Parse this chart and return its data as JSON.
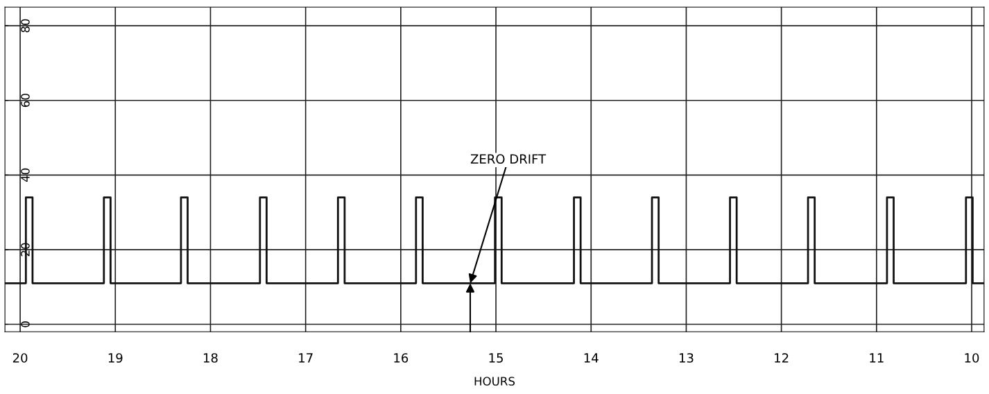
{
  "chart_data": {
    "type": "line",
    "xlabel": "HOURS",
    "x": [
      20.16,
      19.94,
      19.94,
      19.87,
      19.87,
      19.12,
      19.12,
      19.05,
      19.05,
      18.31,
      18.31,
      18.24,
      18.24,
      17.48,
      17.48,
      17.41,
      17.41,
      16.66,
      16.66,
      16.59,
      16.59,
      15.84,
      15.84,
      15.77,
      15.77,
      15.01,
      15.01,
      14.94,
      14.94,
      14.18,
      14.18,
      14.11,
      14.11,
      13.36,
      13.36,
      13.29,
      13.29,
      12.54,
      12.54,
      12.47,
      12.47,
      11.72,
      11.72,
      11.65,
      11.65,
      10.89,
      10.89,
      10.82,
      10.82,
      10.06,
      10.06,
      9.99,
      9.99,
      9.87
    ],
    "series": [
      {
        "color": "#111111",
        "values": [
          11,
          11,
          34,
          34,
          11,
          11,
          34,
          34,
          11,
          11,
          34,
          34,
          11,
          11,
          34,
          34,
          11,
          11,
          34,
          34,
          11,
          11,
          34,
          34,
          11,
          11,
          34,
          34,
          11,
          11,
          34,
          34,
          11,
          11,
          34,
          34,
          11,
          11,
          34,
          34,
          11,
          11,
          34,
          34,
          11,
          11,
          34,
          34,
          11,
          11,
          34,
          34,
          11,
          11
        ]
      }
    ],
    "xlim": [
      20.16,
      9.87
    ],
    "xticks": [
      20,
      19,
      18,
      17,
      16,
      15,
      14,
      13,
      12,
      11,
      10
    ],
    "ylim": [
      -2,
      85
    ],
    "yticks": [
      0,
      20,
      40,
      60,
      80
    ],
    "annotations": [
      {
        "text": "ZERO DRIFT",
        "x": 15.27,
        "y": 11
      }
    ],
    "grid": true,
    "marker": "none",
    "line_style": "solid"
  }
}
